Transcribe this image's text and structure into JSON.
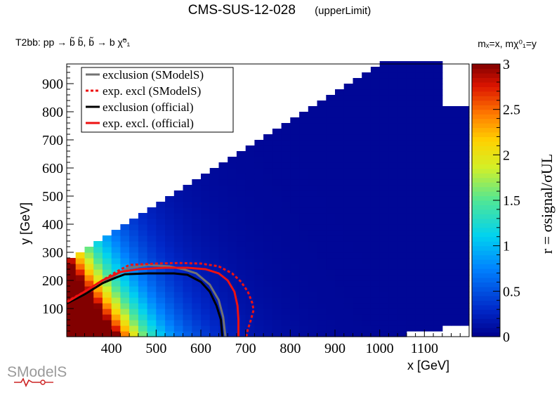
{
  "header": {
    "title": "CMS-SUS-12-028",
    "subtitle": "(upperLimit)",
    "process_label": "T2bb: pp → b̃ b̃, b̃ → b χ̃⁰₁",
    "axis_vars": "mₓ=x, mχ⁰₁=y"
  },
  "chart_data": {
    "type": "heatmap",
    "xlabel": "x [GeV]",
    "ylabel": "y [GeV]",
    "xlim": [
      300,
      1200
    ],
    "ylim": [
      0,
      970
    ],
    "xticks": [
      400,
      500,
      600,
      700,
      800,
      900,
      1000,
      1100
    ],
    "yticks": [
      100,
      200,
      300,
      400,
      500,
      600,
      700,
      800,
      900
    ],
    "zlabel": "r = σsignal/σUL",
    "zlim": [
      0,
      3
    ],
    "zticks": [
      "0",
      "0.5",
      "1",
      "1.5",
      "2",
      "2.5",
      "3"
    ],
    "bin_width_x": 20,
    "bin_width_y": 20,
    "mass_gap": 25,
    "legend": {
      "position": "top-left",
      "entries": [
        {
          "label": "exclusion (SModelS)",
          "color": "#737373",
          "dash": "solid"
        },
        {
          "label": "exp. excl (SModelS)",
          "color": "#ee1111",
          "dash": "dotted"
        },
        {
          "label": "exclusion (official)",
          "color": "#000000",
          "dash": "solid"
        },
        {
          "label": "exp. excl. (official)",
          "color": "#ee1111",
          "dash": "solid"
        }
      ]
    },
    "curves": [
      {
        "name": "exclusion (SModelS)",
        "color": "#737373",
        "dash": "solid",
        "points": [
          [
            300,
            120
          ],
          [
            340,
            150
          ],
          [
            380,
            190
          ],
          [
            410,
            220
          ],
          [
            440,
            245
          ],
          [
            480,
            255
          ],
          [
            530,
            250
          ],
          [
            560,
            240
          ],
          [
            590,
            225
          ],
          [
            620,
            185
          ],
          [
            640,
            130
          ],
          [
            650,
            70
          ],
          [
            655,
            0
          ]
        ]
      },
      {
        "name": "exp. excl (SModelS)",
        "color": "#ee1111",
        "dash": "dotted",
        "points": [
          [
            300,
            125
          ],
          [
            340,
            160
          ],
          [
            380,
            200
          ],
          [
            410,
            230
          ],
          [
            440,
            255
          ],
          [
            500,
            260
          ],
          [
            550,
            262
          ],
          [
            600,
            260
          ],
          [
            640,
            250
          ],
          [
            670,
            225
          ],
          [
            690,
            195
          ],
          [
            705,
            160
          ],
          [
            715,
            120
          ],
          [
            718,
            95
          ],
          [
            712,
            60
          ],
          [
            705,
            25
          ],
          [
            702,
            0
          ]
        ]
      },
      {
        "name": "exclusion (official)",
        "color": "#000000",
        "dash": "solid",
        "points": [
          [
            300,
            118
          ],
          [
            340,
            150
          ],
          [
            380,
            190
          ],
          [
            410,
            210
          ],
          [
            430,
            222
          ],
          [
            480,
            225
          ],
          [
            540,
            225
          ],
          [
            570,
            220
          ],
          [
            600,
            195
          ],
          [
            620,
            160
          ],
          [
            635,
            110
          ],
          [
            645,
            60
          ],
          [
            648,
            0
          ]
        ]
      },
      {
        "name": "exp. excl. (official)",
        "color": "#ee1111",
        "dash": "solid",
        "points": [
          [
            300,
            122
          ],
          [
            340,
            160
          ],
          [
            380,
            200
          ],
          [
            400,
            215
          ],
          [
            420,
            230
          ],
          [
            460,
            240
          ],
          [
            520,
            245
          ],
          [
            570,
            245
          ],
          [
            610,
            240
          ],
          [
            640,
            225
          ],
          [
            660,
            200
          ],
          [
            675,
            160
          ],
          [
            682,
            110
          ],
          [
            684,
            60
          ],
          [
            684,
            0
          ]
        ]
      }
    ]
  },
  "logo": {
    "text": "SModelS"
  }
}
